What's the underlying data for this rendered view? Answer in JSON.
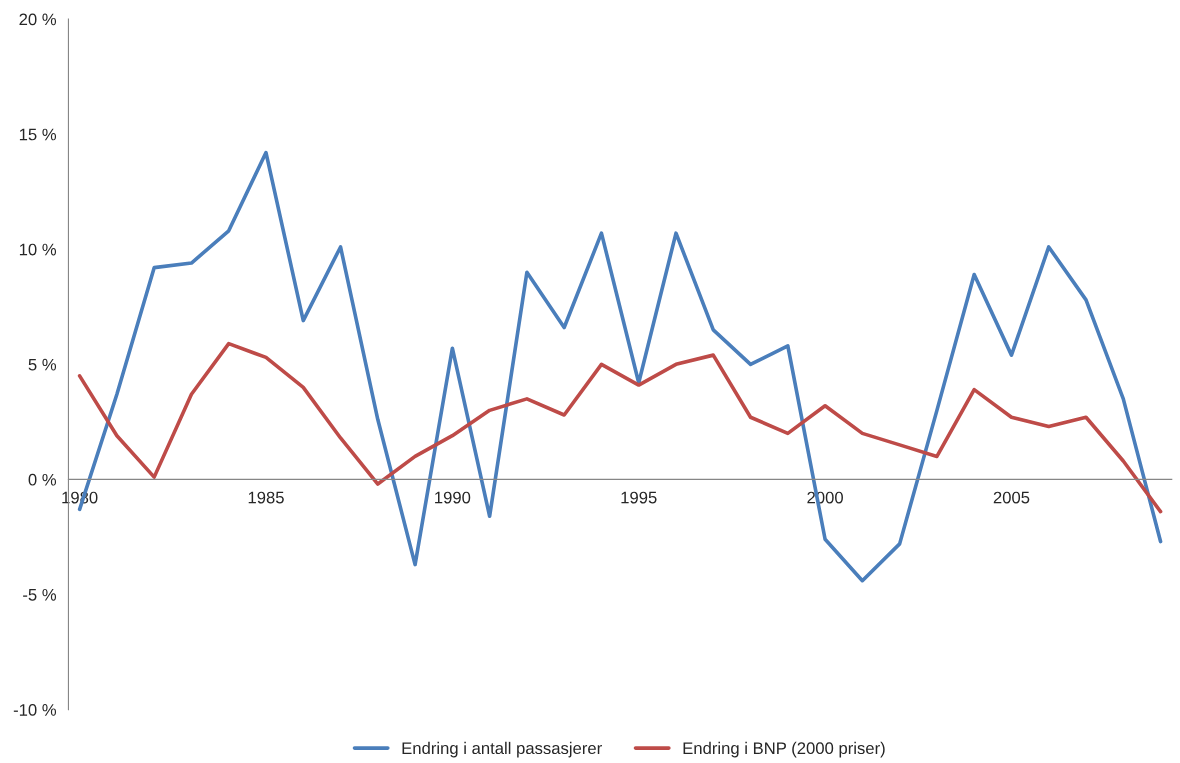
{
  "chart_data": {
    "type": "line",
    "x": [
      1980,
      1981,
      1982,
      1983,
      1984,
      1985,
      1986,
      1987,
      1988,
      1989,
      1990,
      1991,
      1992,
      1993,
      1994,
      1995,
      1996,
      1997,
      1998,
      1999,
      2000,
      2001,
      2002,
      2003,
      2004,
      2005,
      2006,
      2007,
      2008,
      2009
    ],
    "series": [
      {
        "name": "Endring i antall passasjerer",
        "color": "#4a7ebb",
        "values": [
          -1.3,
          3.7,
          9.2,
          9.4,
          10.8,
          14.2,
          6.9,
          10.1,
          2.6,
          -3.7,
          5.7,
          -1.6,
          9.0,
          6.6,
          10.7,
          4.2,
          10.7,
          6.5,
          5.0,
          5.8,
          -2.6,
          -4.4,
          -2.8,
          3.0,
          8.9,
          5.4,
          10.1,
          7.8,
          3.5,
          -2.7
        ]
      },
      {
        "name": "Endring i BNP (2000 priser)",
        "color": "#be4b48",
        "values": [
          4.5,
          1.9,
          0.1,
          3.7,
          5.9,
          5.3,
          4.0,
          1.8,
          -0.2,
          1.0,
          1.9,
          3.0,
          3.5,
          2.8,
          5.0,
          4.1,
          5.0,
          5.4,
          2.7,
          2.0,
          3.2,
          2.0,
          1.5,
          1.0,
          3.9,
          2.7,
          2.3,
          2.7,
          0.8,
          -1.4
        ]
      }
    ],
    "xlim": [
      1979.7,
      2009.3
    ],
    "xticks": [
      1980,
      1985,
      1990,
      1995,
      2000,
      2005
    ],
    "ylim": [
      -10,
      20
    ],
    "yticks": [
      {
        "value": -10,
        "label": "-10 %"
      },
      {
        "value": -5,
        "label": "-5 %"
      },
      {
        "value": 0,
        "label": "0 %"
      },
      {
        "value": 5,
        "label": "5 %"
      },
      {
        "value": 10,
        "label": "10 %"
      },
      {
        "value": 15,
        "label": "15 %"
      },
      {
        "value": 20,
        "label": "20 %"
      }
    ],
    "grid": false,
    "legend": "bottom",
    "marker": "none",
    "line_style": "solid"
  }
}
